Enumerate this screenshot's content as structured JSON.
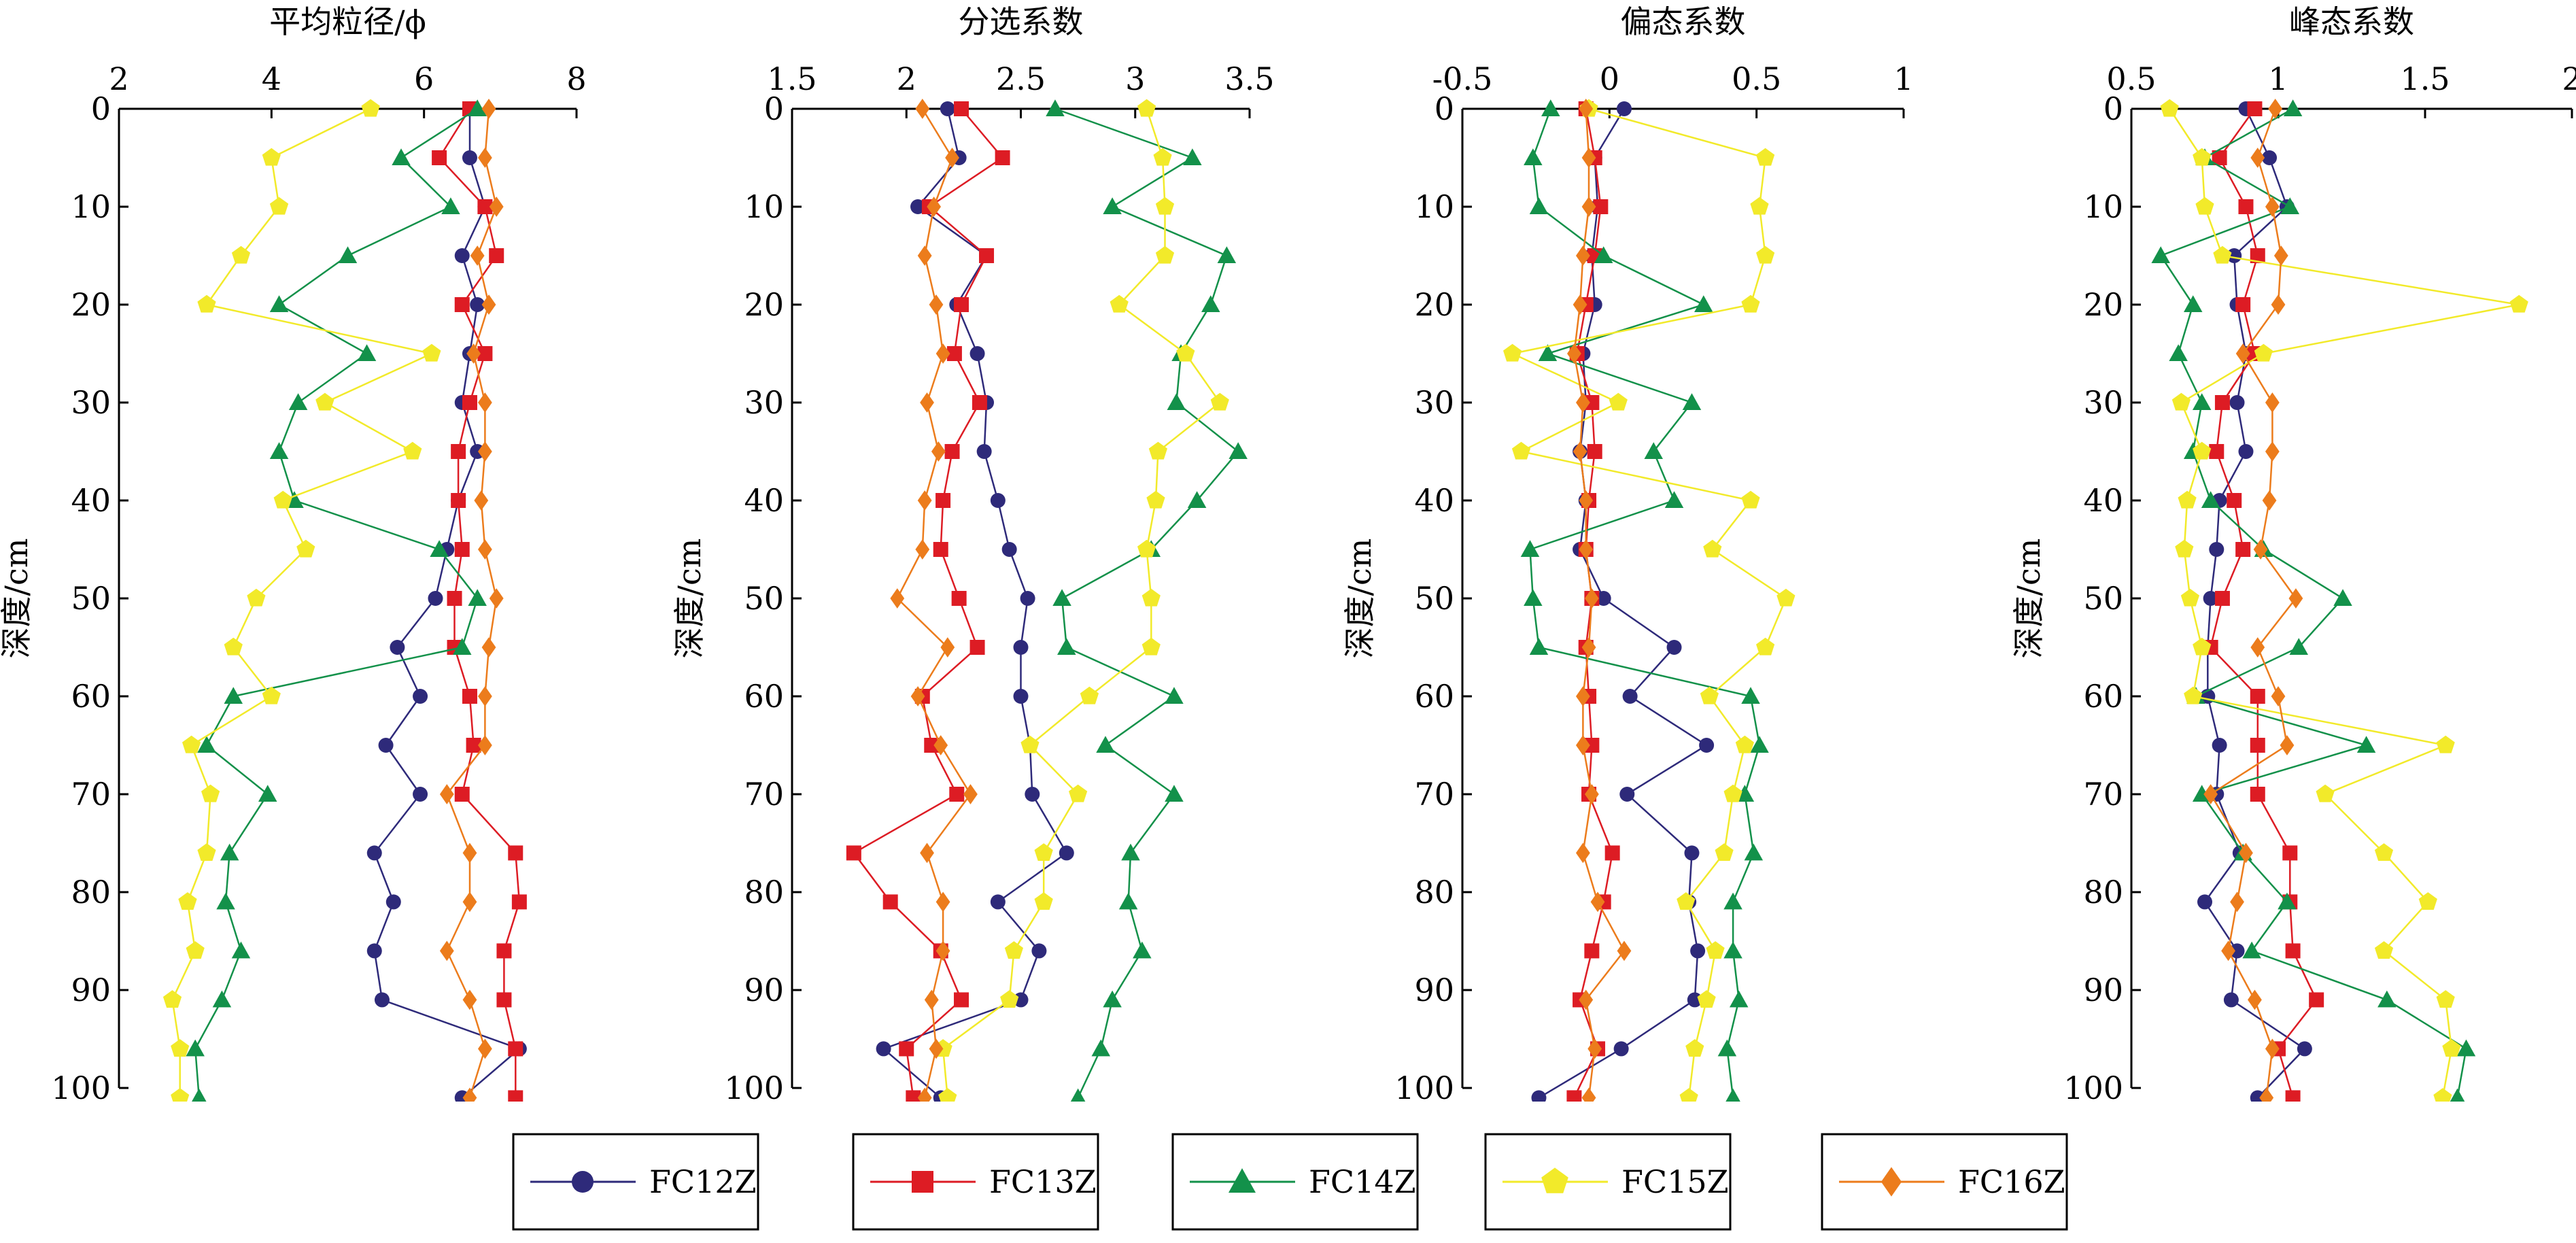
{
  "y_axis_label": "深度/cm",
  "legend_series": [
    "FC12Z",
    "FC13Z",
    "FC14Z",
    "FC15Z",
    "FC16Z"
  ],
  "series_styles": {
    "FC12Z": {
      "color": "#2e2a7a",
      "marker": "circle"
    },
    "FC13Z": {
      "color": "#dd1c24",
      "marker": "square"
    },
    "FC14Z": {
      "color": "#13914a",
      "marker": "triangle"
    },
    "FC15Z": {
      "color": "#f2ea2a",
      "marker": "pentagon"
    },
    "FC16Z": {
      "color": "#ec7c1c",
      "marker": "diamond"
    }
  },
  "chart_data": [
    {
      "type": "line",
      "title": "平均粒径/ϕ",
      "ylabel": "深度/cm",
      "xlim": [
        2,
        8
      ],
      "ylim": [
        0,
        100
      ],
      "x_ticks": [
        2,
        4,
        6,
        8
      ],
      "y_ticks": [
        0,
        10,
        20,
        30,
        40,
        50,
        60,
        70,
        80,
        90,
        100
      ],
      "series": [
        {
          "name": "FC12Z",
          "depth": [
            0,
            5,
            10,
            15,
            20,
            25,
            30,
            35,
            40,
            45,
            50,
            55,
            60,
            65,
            70,
            76,
            81,
            86,
            91,
            96,
            101
          ],
          "values": [
            6.6,
            6.6,
            6.8,
            6.5,
            6.7,
            6.6,
            6.5,
            6.7,
            6.45,
            6.3,
            6.15,
            5.65,
            5.95,
            5.5,
            5.95,
            5.35,
            5.6,
            5.35,
            5.45,
            7.25,
            6.5
          ]
        },
        {
          "name": "FC13Z",
          "depth": [
            0,
            5,
            10,
            15,
            20,
            25,
            30,
            35,
            40,
            45,
            50,
            55,
            60,
            65,
            70,
            76,
            81,
            86,
            91,
            96,
            101
          ],
          "values": [
            6.6,
            6.2,
            6.8,
            6.95,
            6.5,
            6.8,
            6.6,
            6.45,
            6.45,
            6.5,
            6.4,
            6.4,
            6.6,
            6.65,
            6.5,
            7.2,
            7.25,
            7.05,
            7.05,
            7.2,
            7.2
          ]
        },
        {
          "name": "FC14Z",
          "depth": [
            0,
            5,
            10,
            15,
            20,
            25,
            30,
            35,
            40,
            45,
            50,
            55,
            60,
            65,
            70,
            76,
            81,
            86,
            91,
            96,
            101
          ],
          "values": [
            6.7,
            5.7,
            6.35,
            5.0,
            4.1,
            5.25,
            4.35,
            4.1,
            4.3,
            6.2,
            6.7,
            6.5,
            3.5,
            3.15,
            3.95,
            3.45,
            3.4,
            3.6,
            3.35,
            3.0,
            3.05
          ]
        },
        {
          "name": "FC15Z",
          "depth": [
            0,
            5,
            10,
            15,
            20,
            25,
            30,
            35,
            40,
            45,
            50,
            55,
            60,
            65,
            70,
            76,
            81,
            86,
            91,
            96,
            101
          ],
          "values": [
            5.3,
            4.0,
            4.1,
            3.6,
            3.15,
            6.1,
            4.7,
            5.85,
            4.15,
            4.45,
            3.8,
            3.5,
            4.0,
            2.95,
            3.2,
            3.15,
            2.9,
            3.0,
            2.7,
            2.8,
            2.8
          ]
        },
        {
          "name": "FC16Z",
          "depth": [
            0,
            5,
            10,
            15,
            20,
            25,
            30,
            35,
            40,
            45,
            50,
            55,
            60,
            65,
            70,
            76,
            81,
            86,
            91,
            96,
            101
          ],
          "values": [
            6.85,
            6.8,
            6.95,
            6.7,
            6.85,
            6.65,
            6.8,
            6.8,
            6.75,
            6.8,
            6.95,
            6.85,
            6.8,
            6.8,
            6.3,
            6.6,
            6.6,
            6.3,
            6.6,
            6.8,
            6.6
          ]
        }
      ]
    },
    {
      "type": "line",
      "title": "分选系数",
      "xlim": [
        1.5,
        3.5
      ],
      "ylim": [
        0,
        100
      ],
      "x_ticks": [
        "1.5",
        "2",
        "2.5",
        "3",
        "3.5"
      ],
      "y_ticks": [
        0,
        10,
        20,
        30,
        40,
        50,
        60,
        70,
        80,
        90,
        100
      ],
      "series": [
        {
          "name": "FC12Z",
          "depth": [
            0,
            5,
            10,
            15,
            20,
            25,
            30,
            35,
            40,
            45,
            50,
            55,
            60,
            65,
            70,
            76,
            81,
            86,
            91,
            96,
            101
          ],
          "values": [
            2.18,
            2.23,
            2.05,
            2.35,
            2.22,
            2.31,
            2.35,
            2.34,
            2.4,
            2.45,
            2.53,
            2.5,
            2.5,
            2.54,
            2.55,
            2.7,
            2.4,
            2.58,
            2.5,
            1.9,
            2.15
          ]
        },
        {
          "name": "FC13Z",
          "depth": [
            0,
            5,
            10,
            15,
            20,
            25,
            30,
            35,
            40,
            45,
            50,
            55,
            60,
            65,
            70,
            76,
            81,
            86,
            91,
            96,
            101
          ],
          "values": [
            2.24,
            2.42,
            2.1,
            2.35,
            2.24,
            2.21,
            2.32,
            2.2,
            2.16,
            2.15,
            2.23,
            2.31,
            2.07,
            2.11,
            2.22,
            1.77,
            1.93,
            2.15,
            2.24,
            2.0,
            2.03
          ]
        },
        {
          "name": "FC14Z",
          "depth": [
            0,
            5,
            10,
            15,
            20,
            25,
            30,
            35,
            40,
            45,
            50,
            55,
            60,
            65,
            70,
            76,
            81,
            86,
            91,
            96,
            101
          ],
          "values": [
            2.65,
            3.25,
            2.9,
            3.4,
            3.33,
            3.2,
            3.18,
            3.45,
            3.27,
            3.07,
            2.68,
            2.7,
            3.17,
            2.87,
            3.17,
            2.98,
            2.97,
            3.03,
            2.9,
            2.85,
            2.75
          ]
        },
        {
          "name": "FC15Z",
          "depth": [
            0,
            5,
            10,
            15,
            20,
            25,
            30,
            35,
            40,
            45,
            50,
            55,
            60,
            65,
            70,
            76,
            81,
            86,
            91,
            96,
            101
          ],
          "values": [
            3.05,
            3.12,
            3.13,
            3.13,
            2.93,
            3.22,
            3.37,
            3.1,
            3.09,
            3.05,
            3.07,
            3.07,
            2.8,
            2.54,
            2.75,
            2.6,
            2.6,
            2.47,
            2.45,
            2.16,
            2.18
          ]
        },
        {
          "name": "FC16Z",
          "depth": [
            0,
            5,
            10,
            15,
            20,
            25,
            30,
            35,
            40,
            45,
            50,
            55,
            60,
            65,
            70,
            76,
            81,
            86,
            91,
            96,
            101
          ],
          "values": [
            2.07,
            2.2,
            2.12,
            2.08,
            2.13,
            2.16,
            2.09,
            2.14,
            2.08,
            2.07,
            1.96,
            2.18,
            2.05,
            2.15,
            2.28,
            2.09,
            2.16,
            2.16,
            2.11,
            2.13,
            2.08
          ]
        }
      ]
    },
    {
      "type": "line",
      "title": "偏态系数",
      "xlim": [
        -0.5,
        1
      ],
      "ylim": [
        0,
        100
      ],
      "x_ticks": [
        "-0.5",
        "0",
        "0.5",
        "1"
      ],
      "y_ticks": [
        0,
        10,
        20,
        30,
        40,
        50,
        60,
        70,
        80,
        90,
        100
      ],
      "series": [
        {
          "name": "FC12Z",
          "depth": [
            0,
            5,
            10,
            15,
            20,
            25,
            30,
            35,
            40,
            45,
            50,
            55,
            60,
            65,
            70,
            76,
            81,
            86,
            91,
            96,
            101
          ],
          "values": [
            0.05,
            -0.05,
            -0.04,
            -0.06,
            -0.05,
            -0.09,
            -0.08,
            -0.1,
            -0.08,
            -0.1,
            -0.02,
            0.22,
            0.07,
            0.33,
            0.06,
            0.28,
            0.27,
            0.3,
            0.29,
            0.04,
            -0.24
          ]
        },
        {
          "name": "FC13Z",
          "depth": [
            0,
            5,
            10,
            15,
            20,
            25,
            30,
            35,
            40,
            45,
            50,
            55,
            60,
            65,
            70,
            76,
            81,
            86,
            91,
            96,
            101
          ],
          "values": [
            -0.08,
            -0.05,
            -0.03,
            -0.05,
            -0.08,
            -0.11,
            -0.06,
            -0.05,
            -0.07,
            -0.08,
            -0.06,
            -0.08,
            -0.07,
            -0.06,
            -0.07,
            0.01,
            -0.02,
            -0.06,
            -0.1,
            -0.04,
            -0.12
          ]
        },
        {
          "name": "FC14Z",
          "depth": [
            0,
            5,
            10,
            15,
            20,
            25,
            30,
            35,
            40,
            45,
            50,
            55,
            60,
            65,
            70,
            76,
            81,
            86,
            91,
            96,
            101
          ],
          "values": [
            -0.2,
            -0.26,
            -0.24,
            -0.02,
            0.32,
            -0.21,
            0.28,
            0.15,
            0.22,
            -0.27,
            -0.26,
            -0.24,
            0.48,
            0.51,
            0.46,
            0.49,
            0.42,
            0.42,
            0.44,
            0.4,
            0.42
          ]
        },
        {
          "name": "FC15Z",
          "depth": [
            0,
            5,
            10,
            15,
            20,
            25,
            30,
            35,
            40,
            45,
            50,
            55,
            60,
            65,
            70,
            76,
            81,
            86,
            91,
            96,
            101
          ],
          "values": [
            -0.07,
            0.53,
            0.51,
            0.53,
            0.48,
            -0.33,
            0.03,
            -0.3,
            0.48,
            0.35,
            0.6,
            0.53,
            0.34,
            0.46,
            0.42,
            0.39,
            0.26,
            0.36,
            0.33,
            0.29,
            0.27
          ]
        },
        {
          "name": "FC16Z",
          "depth": [
            0,
            5,
            10,
            15,
            20,
            25,
            30,
            35,
            40,
            45,
            50,
            55,
            60,
            65,
            70,
            76,
            81,
            86,
            91,
            96,
            101
          ],
          "values": [
            -0.08,
            -0.07,
            -0.07,
            -0.09,
            -0.1,
            -0.12,
            -0.09,
            -0.1,
            -0.08,
            -0.08,
            -0.06,
            -0.07,
            -0.09,
            -0.09,
            -0.06,
            -0.09,
            -0.04,
            0.05,
            -0.08,
            -0.05,
            -0.07
          ]
        }
      ]
    },
    {
      "type": "line",
      "title": "峰态系数",
      "xlim": [
        0.5,
        2
      ],
      "ylim": [
        0,
        100
      ],
      "x_ticks": [
        "0.5",
        "1",
        "1.5",
        "2"
      ],
      "y_ticks": [
        0,
        10,
        20,
        30,
        40,
        50,
        60,
        70,
        80,
        90,
        100
      ],
      "series": [
        {
          "name": "FC12Z",
          "depth": [
            0,
            5,
            10,
            15,
            20,
            25,
            30,
            35,
            40,
            45,
            50,
            55,
            60,
            65,
            70,
            76,
            81,
            86,
            91,
            96,
            101
          ],
          "values": [
            0.89,
            0.97,
            1.03,
            0.85,
            0.86,
            0.89,
            0.86,
            0.89,
            0.8,
            0.79,
            0.77,
            0.76,
            0.76,
            0.8,
            0.79,
            0.87,
            0.75,
            0.86,
            0.84,
            1.09,
            0.93
          ]
        },
        {
          "name": "FC13Z",
          "depth": [
            0,
            5,
            10,
            15,
            20,
            25,
            30,
            35,
            40,
            45,
            50,
            55,
            60,
            65,
            70,
            76,
            81,
            86,
            91,
            96,
            101
          ],
          "values": [
            0.92,
            0.8,
            0.89,
            0.93,
            0.88,
            0.92,
            0.81,
            0.79,
            0.85,
            0.88,
            0.81,
            0.77,
            0.93,
            0.93,
            0.93,
            1.04,
            1.04,
            1.05,
            1.13,
            1.0,
            1.05
          ]
        },
        {
          "name": "FC14Z",
          "depth": [
            0,
            5,
            10,
            15,
            20,
            25,
            30,
            35,
            40,
            45,
            50,
            55,
            60,
            65,
            70,
            76,
            81,
            86,
            91,
            96,
            101
          ],
          "values": [
            1.05,
            0.75,
            1.04,
            0.6,
            0.71,
            0.66,
            0.74,
            0.71,
            0.77,
            0.95,
            1.22,
            1.07,
            0.72,
            1.3,
            0.74,
            0.88,
            1.03,
            0.91,
            1.37,
            1.64,
            1.61
          ]
        },
        {
          "name": "FC15Z",
          "depth": [
            0,
            5,
            10,
            15,
            20,
            25,
            30,
            35,
            40,
            45,
            50,
            55,
            60,
            65,
            70,
            76,
            81,
            86,
            91,
            96,
            101
          ],
          "values": [
            0.63,
            0.74,
            0.75,
            0.81,
            1.82,
            0.95,
            0.67,
            0.74,
            0.69,
            0.68,
            0.7,
            0.74,
            0.71,
            1.57,
            1.16,
            1.36,
            1.51,
            1.36,
            1.57,
            1.59,
            1.56
          ]
        },
        {
          "name": "FC16Z",
          "depth": [
            0,
            5,
            10,
            15,
            20,
            25,
            30,
            35,
            40,
            45,
            50,
            55,
            60,
            65,
            70,
            76,
            81,
            86,
            91,
            96,
            101
          ],
          "values": [
            0.99,
            0.93,
            0.98,
            1.01,
            1.0,
            0.88,
            0.98,
            0.98,
            0.97,
            0.94,
            1.06,
            0.93,
            1.0,
            1.03,
            0.77,
            0.89,
            0.86,
            0.83,
            0.92,
            0.98,
            0.96
          ]
        }
      ]
    }
  ]
}
